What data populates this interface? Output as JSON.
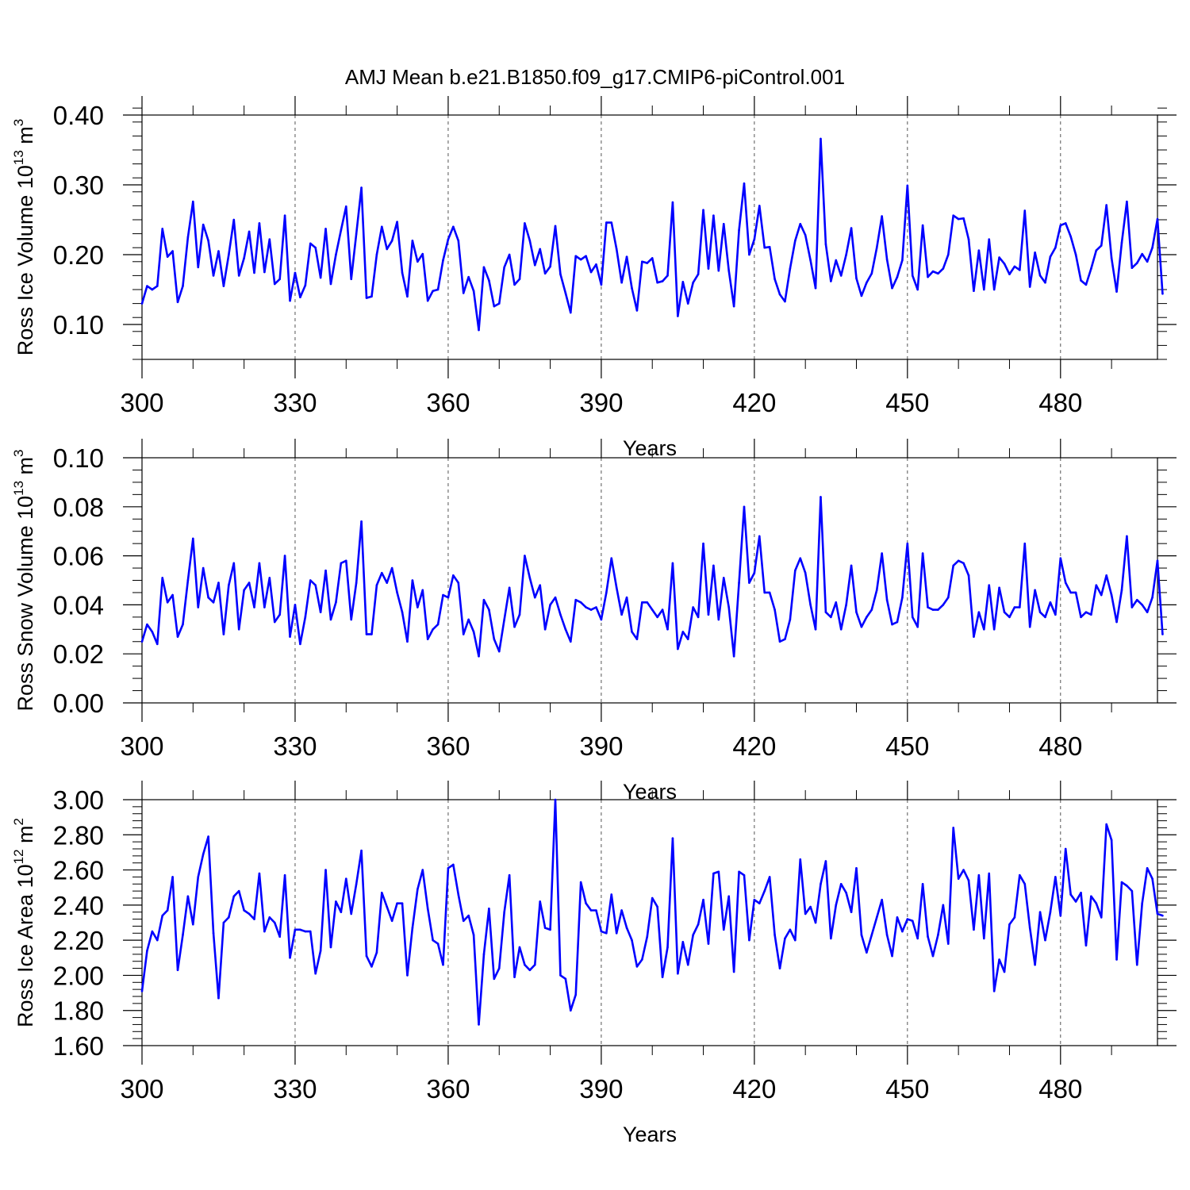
{
  "title": "AMJ Mean b.e21.B1850.f09_g17.CMIP6-piControl.001",
  "chart_data": [
    {
      "type": "line",
      "ylabel": {
        "base": "Ross Ice Volume 10",
        "exp1": "13",
        "mid": " m",
        "exp2": "3"
      },
      "xlabel": "Years",
      "xlim": [
        300,
        499
      ],
      "ylim": [
        0.05,
        0.4
      ],
      "yticks": [
        0.1,
        0.2,
        0.3,
        0.4
      ],
      "ytick_labels": [
        "0.10",
        "0.20",
        "0.30",
        "0.40"
      ],
      "yminor_step": 0.02,
      "xticks": [
        300,
        330,
        360,
        390,
        420,
        450,
        480
      ],
      "xtick_labels": [
        "300",
        "330",
        "360",
        "390",
        "420",
        "450",
        "480"
      ],
      "grid": "dashed vertical at major x ticks",
      "color": "#0000ff",
      "x_start": 300,
      "values": [
        0.13,
        0.155,
        0.15,
        0.155,
        0.237,
        0.197,
        0.205,
        0.132,
        0.155,
        0.225,
        0.276,
        0.182,
        0.243,
        0.22,
        0.17,
        0.205,
        0.155,
        0.2,
        0.25,
        0.17,
        0.195,
        0.233,
        0.174,
        0.245,
        0.175,
        0.222,
        0.158,
        0.165,
        0.256,
        0.134,
        0.174,
        0.139,
        0.156,
        0.216,
        0.21,
        0.167,
        0.237,
        0.158,
        0.2,
        0.235,
        0.269,
        0.165,
        0.23,
        0.296,
        0.138,
        0.14,
        0.2,
        0.24,
        0.208,
        0.22,
        0.247,
        0.174,
        0.14,
        0.22,
        0.19,
        0.201,
        0.134,
        0.148,
        0.15,
        0.192,
        0.222,
        0.24,
        0.22,
        0.145,
        0.168,
        0.148,
        0.092,
        0.182,
        0.163,
        0.126,
        0.13,
        0.182,
        0.2,
        0.157,
        0.165,
        0.245,
        0.22,
        0.185,
        0.208,
        0.173,
        0.183,
        0.241,
        0.172,
        0.145,
        0.117,
        0.198,
        0.193,
        0.198,
        0.175,
        0.186,
        0.157,
        0.246,
        0.246,
        0.208,
        0.16,
        0.197,
        0.152,
        0.12,
        0.19,
        0.188,
        0.195,
        0.16,
        0.162,
        0.17,
        0.275,
        0.112,
        0.161,
        0.13,
        0.16,
        0.172,
        0.264,
        0.18,
        0.256,
        0.177,
        0.244,
        0.177,
        0.126,
        0.235,
        0.302,
        0.2,
        0.222,
        0.27,
        0.21,
        0.211,
        0.165,
        0.143,
        0.133,
        0.18,
        0.22,
        0.244,
        0.228,
        0.192,
        0.152,
        0.366,
        0.215,
        0.162,
        0.192,
        0.17,
        0.2,
        0.238,
        0.166,
        0.141,
        0.16,
        0.173,
        0.21,
        0.255,
        0.193,
        0.152,
        0.168,
        0.192,
        0.299,
        0.17,
        0.15,
        0.242,
        0.168,
        0.176,
        0.173,
        0.18,
        0.2,
        0.256,
        0.251,
        0.252,
        0.222,
        0.148,
        0.206,
        0.15,
        0.222,
        0.15,
        0.196,
        0.187,
        0.172,
        0.183,
        0.178,
        0.263,
        0.154,
        0.203,
        0.17,
        0.16,
        0.197,
        0.21,
        0.242,
        0.245,
        0.226,
        0.2,
        0.163,
        0.157,
        0.18,
        0.206,
        0.213,
        0.271,
        0.195,
        0.147,
        0.217,
        0.276,
        0.181,
        0.188,
        0.201,
        0.19,
        0.21,
        0.251,
        0.144
      ]
    },
    {
      "type": "line",
      "ylabel": {
        "base": "Ross Snow Volume 10",
        "exp1": "13",
        "mid": " m",
        "exp2": "3"
      },
      "xlabel": "Years",
      "xlim": [
        300,
        499
      ],
      "ylim": [
        0.0,
        0.1
      ],
      "yticks": [
        0.0,
        0.02,
        0.04,
        0.06,
        0.08,
        0.1
      ],
      "ytick_labels": [
        "0.00",
        "0.02",
        "0.04",
        "0.06",
        "0.08",
        "0.10"
      ],
      "yminor_step": 0.005,
      "xticks": [
        300,
        330,
        360,
        390,
        420,
        450,
        480
      ],
      "xtick_labels": [
        "300",
        "330",
        "360",
        "390",
        "420",
        "450",
        "480"
      ],
      "grid": "dashed vertical at major x ticks",
      "color": "#0000ff",
      "x_start": 300,
      "values": [
        0.025,
        0.032,
        0.029,
        0.024,
        0.051,
        0.041,
        0.044,
        0.027,
        0.032,
        0.05,
        0.067,
        0.039,
        0.055,
        0.043,
        0.041,
        0.049,
        0.028,
        0.048,
        0.057,
        0.03,
        0.046,
        0.049,
        0.039,
        0.057,
        0.039,
        0.051,
        0.033,
        0.036,
        0.06,
        0.027,
        0.04,
        0.024,
        0.035,
        0.05,
        0.048,
        0.037,
        0.054,
        0.034,
        0.041,
        0.057,
        0.058,
        0.034,
        0.049,
        0.074,
        0.028,
        0.028,
        0.048,
        0.053,
        0.049,
        0.055,
        0.045,
        0.037,
        0.025,
        0.05,
        0.039,
        0.046,
        0.026,
        0.03,
        0.032,
        0.044,
        0.043,
        0.052,
        0.049,
        0.028,
        0.034,
        0.029,
        0.019,
        0.042,
        0.038,
        0.026,
        0.021,
        0.034,
        0.047,
        0.031,
        0.036,
        0.06,
        0.051,
        0.043,
        0.048,
        0.03,
        0.04,
        0.043,
        0.036,
        0.03,
        0.025,
        0.042,
        0.041,
        0.039,
        0.038,
        0.039,
        0.034,
        0.045,
        0.059,
        0.047,
        0.036,
        0.043,
        0.029,
        0.026,
        0.041,
        0.041,
        0.038,
        0.035,
        0.038,
        0.03,
        0.057,
        0.022,
        0.029,
        0.026,
        0.039,
        0.035,
        0.065,
        0.036,
        0.056,
        0.034,
        0.051,
        0.039,
        0.019,
        0.049,
        0.08,
        0.049,
        0.053,
        0.068,
        0.045,
        0.045,
        0.038,
        0.025,
        0.026,
        0.034,
        0.054,
        0.059,
        0.053,
        0.04,
        0.03,
        0.084,
        0.037,
        0.035,
        0.041,
        0.03,
        0.04,
        0.056,
        0.037,
        0.031,
        0.035,
        0.038,
        0.046,
        0.061,
        0.042,
        0.032,
        0.033,
        0.043,
        0.065,
        0.035,
        0.031,
        0.061,
        0.039,
        0.038,
        0.038,
        0.04,
        0.043,
        0.056,
        0.058,
        0.057,
        0.052,
        0.027,
        0.037,
        0.03,
        0.048,
        0.03,
        0.047,
        0.037,
        0.035,
        0.039,
        0.039,
        0.065,
        0.031,
        0.046,
        0.037,
        0.035,
        0.041,
        0.036,
        0.059,
        0.049,
        0.045,
        0.045,
        0.035,
        0.037,
        0.036,
        0.048,
        0.044,
        0.052,
        0.044,
        0.033,
        0.046,
        0.068,
        0.039,
        0.042,
        0.04,
        0.037,
        0.043,
        0.058,
        0.028
      ]
    },
    {
      "type": "line",
      "ylabel": {
        "base": "Ross Ice Area 10",
        "exp1": "12",
        "mid": " m",
        "exp2": "2"
      },
      "xlabel": "Years",
      "xlim": [
        300,
        499
      ],
      "ylim": [
        1.6,
        3.0
      ],
      "yticks": [
        1.6,
        1.8,
        2.0,
        2.2,
        2.4,
        2.6,
        2.8,
        3.0
      ],
      "ytick_labels": [
        "1.60",
        "1.80",
        "2.00",
        "2.20",
        "2.40",
        "2.60",
        "2.80",
        "3.00"
      ],
      "yminor_step": 0.04,
      "xticks": [
        300,
        330,
        360,
        390,
        420,
        450,
        480
      ],
      "xtick_labels": [
        "300",
        "330",
        "360",
        "390",
        "420",
        "450",
        "480"
      ],
      "grid": "dashed vertical at major x ticks",
      "color": "#0000ff",
      "x_start": 300,
      "values": [
        1.91,
        2.14,
        2.25,
        2.2,
        2.34,
        2.37,
        2.56,
        2.03,
        2.23,
        2.45,
        2.29,
        2.56,
        2.69,
        2.79,
        2.24,
        1.87,
        2.3,
        2.33,
        2.45,
        2.48,
        2.37,
        2.35,
        2.32,
        2.58,
        2.25,
        2.33,
        2.3,
        2.22,
        2.57,
        2.1,
        2.26,
        2.26,
        2.25,
        2.25,
        2.01,
        2.14,
        2.6,
        2.16,
        2.42,
        2.36,
        2.55,
        2.35,
        2.52,
        2.71,
        2.11,
        2.05,
        2.13,
        2.47,
        2.39,
        2.31,
        2.41,
        2.41,
        2.0,
        2.27,
        2.49,
        2.6,
        2.38,
        2.2,
        2.18,
        2.06,
        2.61,
        2.63,
        2.46,
        2.31,
        2.34,
        2.23,
        1.72,
        2.12,
        2.38,
        1.98,
        2.04,
        2.36,
        2.57,
        1.99,
        2.16,
        2.06,
        2.03,
        2.06,
        2.42,
        2.27,
        2.26,
        3.0,
        2.0,
        1.98,
        1.8,
        1.89,
        2.53,
        2.41,
        2.37,
        2.37,
        2.25,
        2.24,
        2.46,
        2.24,
        2.37,
        2.27,
        2.2,
        2.05,
        2.09,
        2.22,
        2.44,
        2.39,
        1.99,
        2.16,
        2.78,
        2.01,
        2.19,
        2.06,
        2.23,
        2.29,
        2.43,
        2.18,
        2.58,
        2.59,
        2.26,
        2.45,
        2.02,
        2.59,
        2.57,
        2.2,
        2.43,
        2.41,
        2.48,
        2.56,
        2.23,
        2.04,
        2.21,
        2.26,
        2.2,
        2.66,
        2.35,
        2.39,
        2.3,
        2.52,
        2.65,
        2.21,
        2.4,
        2.52,
        2.47,
        2.36,
        2.61,
        2.23,
        2.13,
        2.23,
        2.33,
        2.43,
        2.23,
        2.11,
        2.33,
        2.25,
        2.32,
        2.31,
        2.21,
        2.52,
        2.22,
        2.11,
        2.23,
        2.4,
        2.18,
        2.84,
        2.55,
        2.6,
        2.54,
        2.26,
        2.57,
        2.21,
        2.58,
        1.91,
        2.09,
        2.02,
        2.29,
        2.33,
        2.57,
        2.52,
        2.27,
        2.06,
        2.36,
        2.2,
        2.36,
        2.56,
        2.34,
        2.72,
        2.46,
        2.42,
        2.47,
        2.17,
        2.45,
        2.41,
        2.33,
        2.86,
        2.77,
        2.09,
        2.53,
        2.51,
        2.48,
        2.06,
        2.41,
        2.61,
        2.55,
        2.35,
        2.34
      ]
    }
  ]
}
